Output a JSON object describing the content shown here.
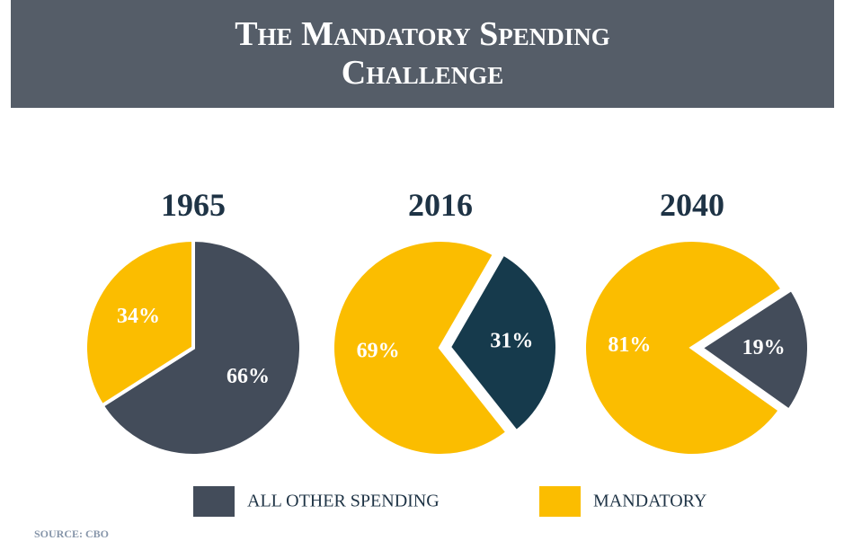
{
  "title": "The Mandatory Spending Challenge",
  "source": "SOURCE: CBO",
  "legend": [
    {
      "name": "ALL OTHER SPENDING",
      "color": "#434c5a"
    },
    {
      "name": "MANDATORY",
      "color": "#fbbd00"
    }
  ],
  "chart_data": [
    {
      "type": "pie",
      "title": "1965",
      "values": [
        66,
        34
      ],
      "value_labels": [
        "66%",
        "34%"
      ],
      "colors": [
        "#434c5a",
        "#fbbd00"
      ]
    },
    {
      "type": "pie",
      "title": "2016",
      "values": [
        31,
        69
      ],
      "value_labels": [
        "31%",
        "69%"
      ],
      "colors": [
        "#163a4c",
        "#fbbd00"
      ]
    },
    {
      "type": "pie",
      "title": "2040",
      "values": [
        19,
        81
      ],
      "value_labels": [
        "19%",
        "81%"
      ],
      "colors": [
        "#434c5a",
        "#fbbd00"
      ]
    }
  ]
}
